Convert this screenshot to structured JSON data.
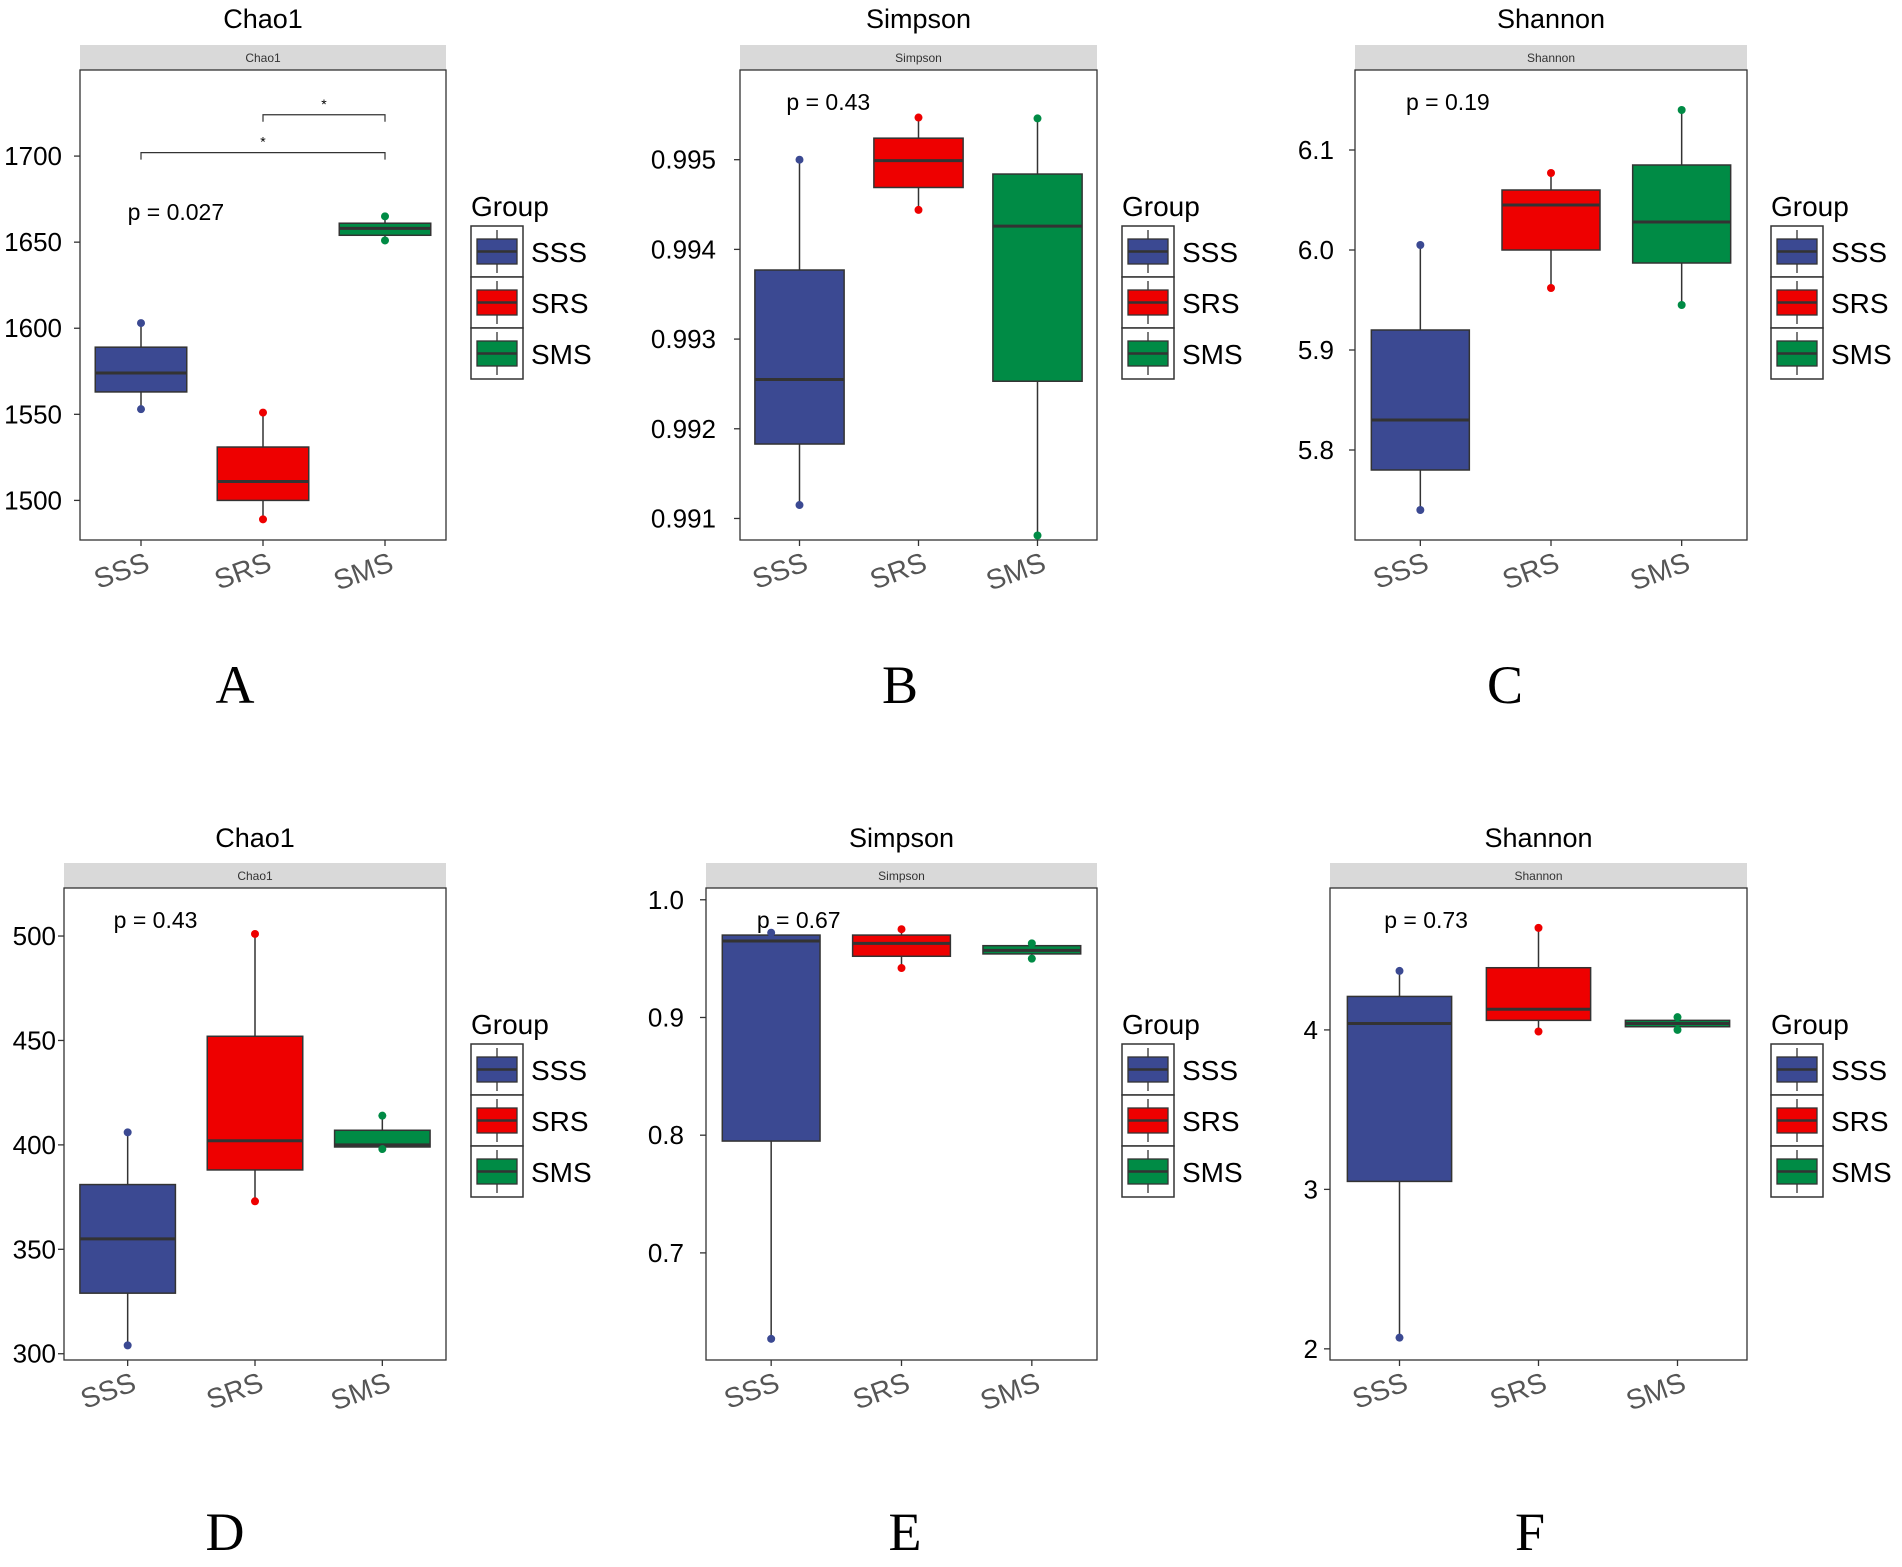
{
  "colors": {
    "SSS": "#3B4992",
    "SRS": "#EE0000",
    "SMS": "#008B45",
    "strip": "#D9D9D9",
    "median": "#333333"
  },
  "chart_data": [
    {
      "type": "box",
      "panel_label": "A",
      "title": "Chao1",
      "strip": "Chao1",
      "categories": [
        "SSS",
        "SRS",
        "SMS"
      ],
      "ylim": [
        1477,
        1750
      ],
      "yticks": [
        1500,
        1550,
        1600,
        1650,
        1700
      ],
      "ytick_labels": [
        "1500",
        "1550",
        "1600",
        "1650",
        "1700"
      ],
      "pvalue": "p = 0.027",
      "boxes": [
        {
          "group": "SSS",
          "q1": 1563,
          "median": 1574,
          "q3": 1589,
          "lower": 1553,
          "upper": 1603,
          "points": [
            1553,
            1603
          ]
        },
        {
          "group": "SRS",
          "q1": 1500,
          "median": 1511,
          "q3": 1531,
          "lower": 1489,
          "upper": 1551,
          "points": [
            1489,
            1551
          ]
        },
        {
          "group": "SMS",
          "q1": 1654,
          "median": 1658,
          "q3": 1661,
          "lower": 1651,
          "upper": 1665,
          "points": [
            1651,
            1665
          ]
        }
      ],
      "significance": [
        {
          "from": "SRS",
          "to": "SMS",
          "label": "*",
          "y": 1724
        },
        {
          "from": "SSS",
          "to": "SMS",
          "label": "*",
          "y": 1702
        }
      ],
      "legend": {
        "title": "Group",
        "entries": [
          "SSS",
          "SRS",
          "SMS"
        ]
      }
    },
    {
      "type": "box",
      "panel_label": "B",
      "title": "Simpson",
      "strip": "Simpson",
      "categories": [
        "SSS",
        "SRS",
        "SMS"
      ],
      "ylim": [
        0.99076,
        0.996
      ],
      "yticks": [
        0.991,
        0.992,
        0.993,
        0.994,
        0.995
      ],
      "ytick_labels": [
        "0.991",
        "0.992",
        "0.993",
        "0.994",
        "0.995"
      ],
      "pvalue": "p = 0.43",
      "boxes": [
        {
          "group": "SSS",
          "q1": 0.99183,
          "median": 0.99255,
          "q3": 0.99377,
          "lower": 0.99115,
          "upper": 0.995,
          "points": [
            0.99115,
            0.995
          ]
        },
        {
          "group": "SRS",
          "q1": 0.99469,
          "median": 0.99499,
          "q3": 0.99524,
          "lower": 0.99444,
          "upper": 0.99547,
          "points": [
            0.99444,
            0.99547
          ]
        },
        {
          "group": "SMS",
          "q1": 0.99253,
          "median": 0.99426,
          "q3": 0.99484,
          "lower": 0.99081,
          "upper": 0.99546,
          "points": [
            0.99081,
            0.99546
          ]
        }
      ],
      "significance": [],
      "legend": {
        "title": "Group",
        "entries": [
          "SSS",
          "SRS",
          "SMS"
        ]
      }
    },
    {
      "type": "box",
      "panel_label": "C",
      "title": "Shannon",
      "strip": "Shannon",
      "categories": [
        "SSS",
        "SRS",
        "SMS"
      ],
      "ylim": [
        5.71,
        6.18
      ],
      "yticks": [
        5.8,
        5.9,
        6.0,
        6.1
      ],
      "ytick_labels": [
        "5.8",
        "5.9",
        "6.0",
        "6.1"
      ],
      "pvalue": "p = 0.19",
      "boxes": [
        {
          "group": "SSS",
          "q1": 5.78,
          "median": 5.83,
          "q3": 5.92,
          "lower": 5.74,
          "upper": 6.005,
          "points": [
            5.74,
            6.005
          ]
        },
        {
          "group": "SRS",
          "q1": 6.0,
          "median": 6.045,
          "q3": 6.06,
          "lower": 5.962,
          "upper": 6.077,
          "points": [
            5.962,
            6.077
          ]
        },
        {
          "group": "SMS",
          "q1": 5.987,
          "median": 6.028,
          "q3": 6.085,
          "lower": 5.945,
          "upper": 6.14,
          "points": [
            5.945,
            6.14
          ]
        }
      ],
      "significance": [],
      "legend": {
        "title": "Group",
        "entries": [
          "SSS",
          "SRS",
          "SMS"
        ]
      }
    },
    {
      "type": "box",
      "panel_label": "D",
      "title": "Chao1",
      "strip": "Chao1",
      "categories": [
        "SSS",
        "SRS",
        "SMS"
      ],
      "ylim": [
        297,
        523
      ],
      "yticks": [
        300,
        350,
        400,
        450,
        500
      ],
      "ytick_labels": [
        "300",
        "350",
        "400",
        "450",
        "500"
      ],
      "pvalue": "p = 0.43",
      "boxes": [
        {
          "group": "SSS",
          "q1": 329,
          "median": 355,
          "q3": 381,
          "lower": 304,
          "upper": 406,
          "points": [
            304,
            406
          ]
        },
        {
          "group": "SRS",
          "q1": 388,
          "median": 402,
          "q3": 452,
          "lower": 373,
          "upper": 501,
          "points": [
            373,
            501
          ]
        },
        {
          "group": "SMS",
          "q1": 399,
          "median": 400,
          "q3": 407,
          "lower": 398,
          "upper": 414,
          "points": [
            398,
            414
          ]
        }
      ],
      "significance": [],
      "legend": {
        "title": "Group",
        "entries": [
          "SSS",
          "SRS",
          "SMS"
        ]
      }
    },
    {
      "type": "box",
      "panel_label": "E",
      "title": "Simpson",
      "strip": "Simpson",
      "categories": [
        "SSS",
        "SRS",
        "SMS"
      ],
      "ylim": [
        0.609,
        1.01
      ],
      "yticks": [
        0.7,
        0.8,
        0.9,
        1.0
      ],
      "ytick_labels": [
        "0.7",
        "0.8",
        "0.9",
        "1.0"
      ],
      "pvalue": "p = 0.67",
      "boxes": [
        {
          "group": "SSS",
          "q1": 0.795,
          "median": 0.965,
          "q3": 0.97,
          "lower": 0.627,
          "upper": 0.972,
          "points": [
            0.627,
            0.972
          ]
        },
        {
          "group": "SRS",
          "q1": 0.952,
          "median": 0.963,
          "q3": 0.97,
          "lower": 0.942,
          "upper": 0.975,
          "points": [
            0.942,
            0.975
          ]
        },
        {
          "group": "SMS",
          "q1": 0.954,
          "median": 0.957,
          "q3": 0.961,
          "lower": 0.95,
          "upper": 0.963,
          "points": [
            0.95,
            0.963
          ]
        }
      ],
      "significance": [],
      "legend": {
        "title": "Group",
        "entries": [
          "SSS",
          "SRS",
          "SMS"
        ]
      }
    },
    {
      "type": "box",
      "panel_label": "F",
      "title": "Shannon",
      "strip": "Shannon",
      "categories": [
        "SSS",
        "SRS",
        "SMS"
      ],
      "ylim": [
        1.93,
        4.89
      ],
      "yticks": [
        2,
        3,
        4
      ],
      "ytick_labels": [
        "2",
        "3",
        "4"
      ],
      "pvalue": "p = 0.73",
      "boxes": [
        {
          "group": "SSS",
          "q1": 3.05,
          "median": 4.04,
          "q3": 4.21,
          "lower": 2.07,
          "upper": 4.37,
          "points": [
            2.07,
            4.37
          ]
        },
        {
          "group": "SRS",
          "q1": 4.06,
          "median": 4.13,
          "q3": 4.39,
          "lower": 3.99,
          "upper": 4.64,
          "points": [
            3.99,
            4.64
          ]
        },
        {
          "group": "SMS",
          "q1": 4.02,
          "median": 4.04,
          "q3": 4.06,
          "lower": 4.0,
          "upper": 4.08,
          "points": [
            4.0,
            4.08
          ]
        }
      ],
      "significance": [],
      "legend": {
        "title": "Group",
        "entries": [
          "SSS",
          "SRS",
          "SMS"
        ]
      }
    }
  ]
}
